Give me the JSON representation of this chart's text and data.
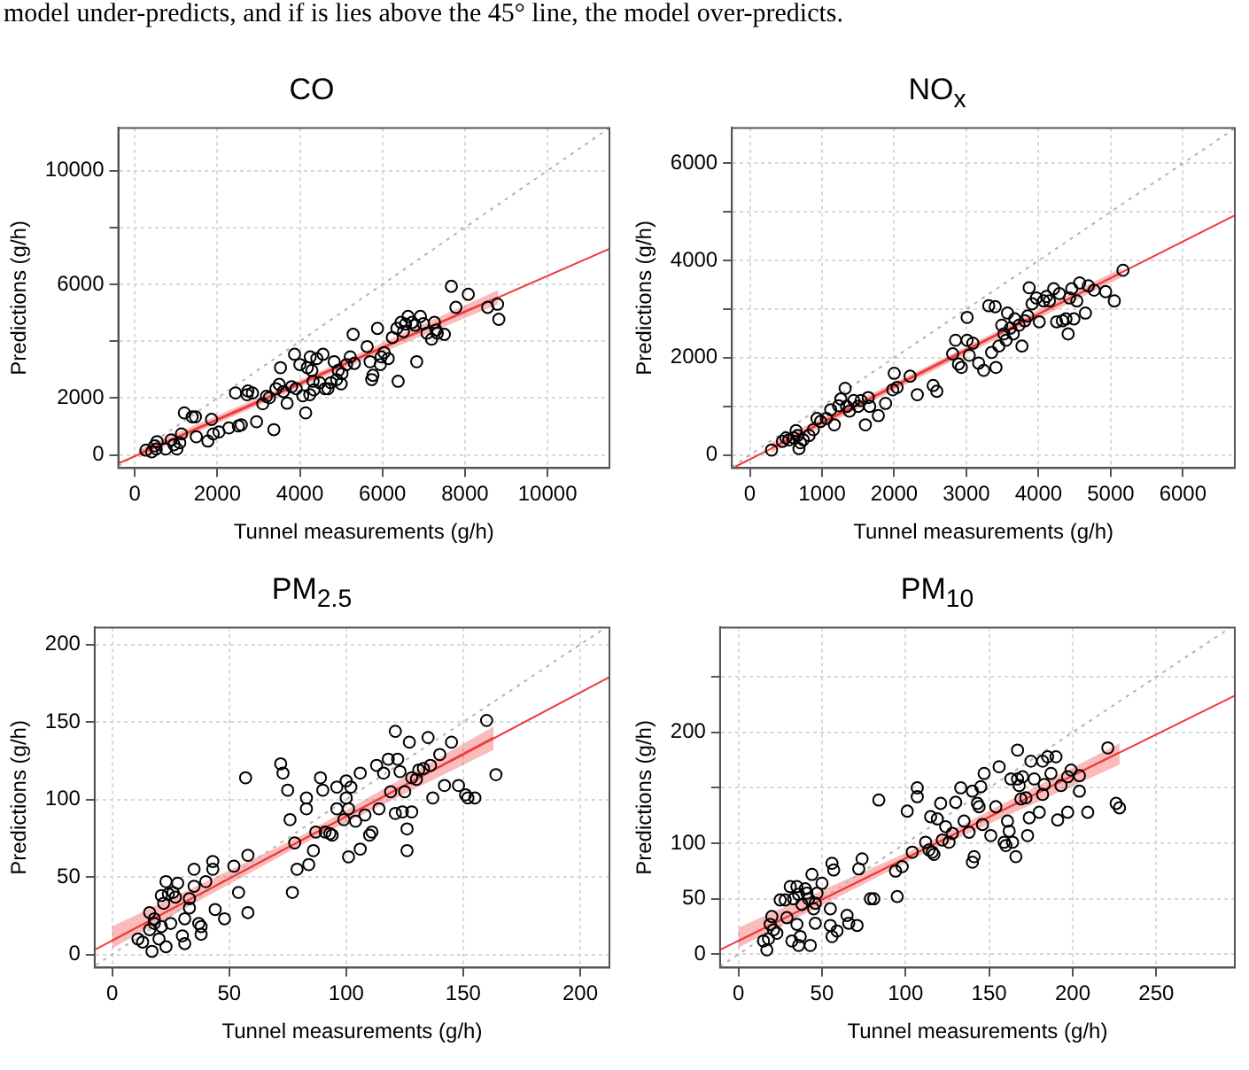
{
  "chart_data": [
    {
      "type": "scatter",
      "title": "CO",
      "xlabel": "Tunnel measurements (g/h)",
      "ylabel": "Predictions (g/h)",
      "xlim": [
        -400,
        11500
      ],
      "ylim": [
        -460,
        11500
      ],
      "xticks": [
        0,
        2000,
        4000,
        6000,
        8000,
        10000
      ],
      "yticks": [
        0,
        2000,
        {
          "value": 4000,
          "label": null
        },
        6000,
        {
          "value": 8000,
          "label": null
        },
        10000
      ],
      "grid": true,
      "annotations": [
        "model under-predicts, and if is lies above the 45° line, the model over-predicts."
      ],
      "series": [
        {
          "type": "scatter",
          "marker": "circle",
          "color": "#000000",
          "x": [
            270,
            410,
            480,
            540,
            520,
            750,
            880,
            950,
            1020,
            1090,
            1130,
            1200,
            1390,
            1470,
            1490,
            1770,
            1860,
            1900,
            2040,
            2280,
            2440,
            2510,
            2580,
            2740,
            2720,
            2850,
            2950,
            3100,
            3190,
            3260,
            3370,
            3420,
            3500,
            3530,
            3600,
            3690,
            3800,
            3870,
            3910,
            4000,
            4070,
            4140,
            4180,
            4240,
            4250,
            4290,
            4320,
            4340,
            4410,
            4480,
            4560,
            4610,
            4680,
            4750,
            4830,
            4890,
            4930,
            5000,
            5020,
            5130,
            5220,
            5290,
            5320,
            5630,
            5700,
            5740,
            5770,
            5880,
            5950,
            5970,
            6040,
            6240,
            6350,
            6380,
            6450,
            6510,
            6560,
            6620,
            6720,
            6790,
            6830,
            6920,
            6990,
            7080,
            7190,
            7260,
            7330,
            7500,
            7670,
            7780,
            8080,
            8550,
            8790,
            8820,
            7300,
            6140
          ],
          "values": [
            170,
            110,
            320,
            470,
            210,
            210,
            530,
            360,
            210,
            430,
            740,
            1480,
            1340,
            1340,
            640,
            490,
            1250,
            740,
            810,
            950,
            2180,
            1020,
            1060,
            2250,
            2120,
            2180,
            1170,
            1800,
            2060,
            2010,
            890,
            2330,
            2480,
            3070,
            2230,
            1820,
            2400,
            3540,
            2330,
            3180,
            2080,
            1480,
            3070,
            2120,
            3450,
            2970,
            2590,
            2290,
            3390,
            2540,
            3540,
            2330,
            2330,
            2540,
            3280,
            2650,
            2970,
            2500,
            2860,
            3180,
            3450,
            4240,
            3220,
            3810,
            3280,
            2650,
            2800,
            4450,
            3180,
            3450,
            3600,
            4130,
            4450,
            2590,
            4660,
            4340,
            4600,
            4870,
            4660,
            4560,
            3280,
            4870,
            4620,
            4280,
            4070,
            4660,
            4280,
            4240,
            5930,
            5190,
            5650,
            5190,
            5300,
            4770,
            4390,
            3390
          ]
        },
        {
          "type": "line",
          "marker": "none",
          "color": "#f03c3c",
          "x": [
            -400,
            11500
          ],
          "values": [
            -300,
            7250
          ]
        },
        {
          "type": "line",
          "marker": "none",
          "color": "#f03c3c",
          "x": [
            100,
            4500,
            8800
          ],
          "values": [
            50,
            2850,
            5550
          ],
          "lower": [
            -100,
            2700,
            5300
          ],
          "upper": [
            200,
            2950,
            5800
          ]
        },
        {
          "type": "line",
          "marker": "none",
          "line_style": "dotted",
          "color": "#b4b4b4",
          "x": [
            -400,
            11500
          ],
          "values": [
            -400,
            11500
          ]
        }
      ]
    },
    {
      "type": "scatter",
      "title": "NO$_{x}$",
      "xlabel": "Tunnel measurements (g/h)",
      "ylabel": "Predictions (g/h)",
      "xlim": [
        -250,
        6720
      ],
      "ylim": [
        -270,
        6730
      ],
      "xticks": [
        0,
        1000,
        2000,
        3000,
        4000,
        5000,
        6000
      ],
      "yticks": [
        0,
        {
          "value": 1000,
          "label": null
        },
        2000,
        {
          "value": 3000,
          "label": null
        },
        4000,
        {
          "value": 5000,
          "label": null
        },
        6000
      ],
      "grid": true,
      "series": [
        {
          "type": "scatter",
          "marker": "circle",
          "color": "#000000",
          "x": [
            300,
            450,
            500,
            540,
            610,
            640,
            660,
            680,
            700,
            740,
            820,
            880,
            930,
            980,
            1060,
            1120,
            1170,
            1230,
            1260,
            1320,
            1340,
            1380,
            1440,
            1500,
            1540,
            1600,
            1640,
            1660,
            1780,
            1880,
            1980,
            2000,
            2040,
            2220,
            2320,
            2540,
            2590,
            2810,
            2850,
            2890,
            2930,
            3010,
            3010,
            3040,
            3090,
            3170,
            3240,
            3310,
            3350,
            3400,
            3410,
            3450,
            3490,
            3520,
            3550,
            3570,
            3610,
            3650,
            3670,
            3730,
            3770,
            3810,
            3850,
            3870,
            3910,
            3970,
            4010,
            4070,
            4110,
            4150,
            4210,
            4250,
            4290,
            4330,
            4380,
            4410,
            4430,
            4460,
            4490,
            4530,
            4570,
            4650,
            4690,
            4770,
            4930,
            5050,
            5170
          ],
          "values": [
            100,
            280,
            350,
            310,
            350,
            500,
            400,
            130,
            250,
            310,
            400,
            520,
            750,
            690,
            750,
            930,
            620,
            1010,
            1150,
            1370,
            1000,
            900,
            1120,
            1000,
            1120,
            620,
            1180,
            1000,
            810,
            1060,
            1340,
            1680,
            1390,
            1620,
            1240,
            1430,
            1310,
            2080,
            2360,
            1870,
            1800,
            2360,
            2830,
            2050,
            2300,
            1890,
            1740,
            3070,
            2110,
            3050,
            1800,
            2240,
            2670,
            2490,
            2360,
            2920,
            2610,
            2490,
            2800,
            2670,
            2240,
            2760,
            2860,
            3440,
            3110,
            3230,
            2740,
            3170,
            3260,
            3170,
            3420,
            2740,
            3320,
            2760,
            2800,
            2490,
            3230,
            3420,
            2800,
            3170,
            3540,
            2920,
            3480,
            3390,
            3360,
            3170,
            3800
          ]
        },
        {
          "type": "line",
          "marker": "none",
          "color": "#f03c3c",
          "x": [
            -200,
            6720
          ],
          "values": [
            -240,
            4930
          ]
        },
        {
          "type": "line",
          "marker": "none",
          "color": "#f03c3c",
          "x": [
            300,
            2700,
            5150
          ],
          "values": [
            150,
            1950,
            3750
          ],
          "lower": [
            50,
            1850,
            3650
          ],
          "upper": [
            250,
            2000,
            3850
          ]
        },
        {
          "type": "line",
          "marker": "none",
          "line_style": "dotted",
          "color": "#b4b4b4",
          "x": [
            -250,
            6720
          ],
          "values": [
            -250,
            6720
          ]
        }
      ]
    },
    {
      "type": "scatter",
      "title": "PM$_{2.5}$",
      "xlabel": "Tunnel measurements (g/h)",
      "ylabel": "Predictions (g/h)",
      "xlim": [
        -7.5,
        212.5
      ],
      "ylim": [
        -8.5,
        211
      ],
      "xticks": [
        0,
        50,
        100,
        150,
        200
      ],
      "yticks": [
        0,
        50,
        100,
        150,
        200
      ],
      "grid": true,
      "series": [
        {
          "type": "scatter",
          "marker": "circle",
          "color": "#000000",
          "x": [
            11,
            13,
            16,
            16,
            17,
            18,
            18,
            20,
            21,
            21,
            22,
            23,
            23,
            24,
            25,
            26,
            27,
            28,
            30,
            31,
            31,
            33,
            33,
            35,
            35,
            37,
            38,
            38,
            40,
            43,
            43,
            44,
            48,
            52,
            54,
            57,
            58,
            58,
            72,
            73,
            75,
            76,
            77,
            78,
            79,
            83,
            83,
            84,
            86,
            87,
            89,
            90,
            91,
            93,
            94,
            96,
            96,
            99,
            100,
            101,
            100,
            101,
            102,
            104,
            106,
            106,
            108,
            110,
            111,
            113,
            114,
            116,
            118,
            119,
            121,
            121,
            122,
            123,
            124,
            125,
            126,
            126,
            127,
            128,
            128,
            130,
            131,
            133,
            135,
            136,
            137,
            140,
            142,
            145,
            148,
            151,
            152,
            155,
            160,
            164
          ],
          "values": [
            10,
            8,
            16,
            27,
            2,
            20,
            23,
            10,
            38,
            18,
            33,
            5,
            47,
            39,
            20,
            40,
            37,
            46,
            12,
            7,
            23,
            30,
            36,
            55,
            44,
            20,
            18,
            13,
            47,
            55,
            60,
            29,
            23,
            57,
            40,
            114,
            27,
            64,
            123,
            117,
            106,
            87,
            40,
            72,
            55,
            101,
            94,
            58,
            67,
            79,
            114,
            106,
            79,
            78,
            77,
            94,
            108,
            87,
            101,
            63,
            112,
            94,
            108,
            86,
            68,
            117,
            90,
            77,
            79,
            122,
            94,
            117,
            126,
            105,
            144,
            91,
            126,
            118,
            92,
            105,
            67,
            81,
            137,
            92,
            114,
            113,
            119,
            120,
            140,
            122,
            101,
            129,
            109,
            137,
            109,
            103,
            101,
            101,
            151,
            116
          ]
        },
        {
          "type": "line",
          "marker": "none",
          "color": "#f03c3c",
          "x": [
            -7.5,
            212.5
          ],
          "values": [
            3,
            179
          ]
        },
        {
          "type": "line",
          "marker": "none",
          "color": "#f03c3c",
          "x": [
            0,
            80,
            163
          ],
          "values": [
            9,
            73,
            140
          ],
          "lower": [
            4,
            70,
            132
          ],
          "upper": [
            18,
            76,
            147
          ]
        },
        {
          "type": "line",
          "marker": "none",
          "line_style": "dotted",
          "color": "#b4b4b4",
          "x": [
            -7,
            211
          ],
          "values": [
            -7,
            211
          ]
        }
      ]
    },
    {
      "type": "scatter",
      "title": "PM$_{10}$",
      "xlabel": "Tunnel measurements (g/h)",
      "ylabel": "Predictions (g/h)",
      "xlim": [
        -11,
        297
      ],
      "ylim": [
        -12,
        294.5
      ],
      "xticks": [
        0,
        50,
        100,
        150,
        200,
        250
      ],
      "yticks": [
        0,
        50,
        100,
        {
          "value": 150,
          "label": null
        },
        200,
        {
          "value": 250,
          "label": null
        }
      ],
      "grid": true,
      "series": [
        {
          "type": "scatter",
          "marker": "circle",
          "color": "#000000",
          "x": [
            15,
            17,
            18,
            19,
            20,
            21,
            23,
            25,
            28,
            29,
            31,
            32,
            33,
            35,
            35,
            36,
            36,
            37,
            38,
            40,
            41,
            42,
            43,
            44,
            45,
            46,
            47,
            46,
            50,
            55,
            55,
            56,
            56,
            57,
            59,
            65,
            66,
            71,
            72,
            74,
            79,
            81,
            84,
            94,
            95,
            98,
            101,
            104,
            107,
            107,
            112,
            114,
            116,
            115,
            117,
            119,
            121,
            122,
            124,
            126,
            128,
            130,
            133,
            135,
            138,
            140,
            141,
            140,
            143,
            144,
            145,
            146,
            147,
            151,
            154,
            156,
            159,
            160,
            161,
            162,
            163,
            164,
            166,
            167,
            167,
            168,
            169,
            170,
            172,
            173,
            174,
            175,
            177,
            180,
            182,
            182,
            183,
            185,
            187,
            190,
            191,
            193,
            197,
            197,
            199,
            204,
            204,
            209,
            221,
            226,
            228
          ],
          "values": [
            12,
            4,
            14,
            27,
            34,
            22,
            19,
            49,
            49,
            33,
            61,
            12,
            50,
            61,
            27,
            8,
            54,
            16,
            45,
            59,
            55,
            50,
            8,
            72,
            41,
            46,
            55,
            28,
            64,
            41,
            26,
            82,
            16,
            76,
            21,
            35,
            28,
            26,
            77,
            86,
            50,
            50,
            139,
            75,
            52,
            79,
            129,
            92,
            150,
            142,
            101,
            94,
            92,
            124,
            90,
            122,
            136,
            103,
            115,
            101,
            109,
            137,
            150,
            120,
            110,
            83,
            88,
            147,
            136,
            133,
            151,
            117,
            163,
            107,
            133,
            169,
            101,
            98,
            120,
            111,
            158,
            101,
            88,
            184,
            158,
            152,
            140,
            160,
            141,
            107,
            123,
            174,
            158,
            128,
            174,
            144,
            153,
            178,
            163,
            178,
            121,
            152,
            128,
            160,
            166,
            147,
            161,
            128,
            186,
            136,
            132
          ]
        },
        {
          "type": "line",
          "marker": "none",
          "color": "#f03c3c",
          "x": [
            -11,
            297
          ],
          "values": [
            4,
            233
          ]
        },
        {
          "type": "line",
          "marker": "none",
          "color": "#f03c3c",
          "x": [
            0,
            110,
            228
          ],
          "values": [
            12,
            94,
            182
          ],
          "lower": [
            6,
            90,
            171
          ],
          "upper": [
            24,
            98,
            190
          ]
        },
        {
          "type": "line",
          "marker": "none",
          "line_style": "dotted",
          "color": "#b4b4b4",
          "x": [
            -11,
            294
          ],
          "values": [
            -11,
            294
          ]
        }
      ]
    }
  ]
}
